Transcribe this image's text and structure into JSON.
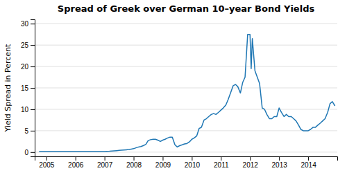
{
  "chart_data": {
    "type": "line",
    "title": "Spread of Greek over German 10–year Bond Yields",
    "ylabel": "Yield Spread in Percent",
    "xlim": [
      2004.6,
      2015.0
    ],
    "xticks": [
      2005,
      2006,
      2007,
      2008,
      2009,
      2010,
      2011,
      2012,
      2013,
      2014
    ],
    "ylim": [
      -1,
      31
    ],
    "yticks": [
      0,
      5,
      10,
      15,
      20,
      25,
      30
    ],
    "grid": "y",
    "x": [
      2004.75,
      2004.83,
      2004.92,
      2005.0,
      2005.08,
      2005.17,
      2005.25,
      2005.33,
      2005.42,
      2005.5,
      2005.58,
      2005.67,
      2005.75,
      2005.83,
      2005.92,
      2006.0,
      2006.08,
      2006.17,
      2006.25,
      2006.33,
      2006.42,
      2006.5,
      2006.58,
      2006.67,
      2006.75,
      2006.83,
      2006.92,
      2007.0,
      2007.08,
      2007.17,
      2007.25,
      2007.33,
      2007.42,
      2007.5,
      2007.58,
      2007.67,
      2007.75,
      2007.83,
      2007.92,
      2008.0,
      2008.08,
      2008.17,
      2008.25,
      2008.33,
      2008.42,
      2008.5,
      2008.58,
      2008.67,
      2008.75,
      2008.83,
      2008.92,
      2009.0,
      2009.08,
      2009.17,
      2009.25,
      2009.33,
      2009.42,
      2009.5,
      2009.58,
      2009.67,
      2009.75,
      2009.83,
      2009.92,
      2010.0,
      2010.08,
      2010.17,
      2010.25,
      2010.33,
      2010.42,
      2010.5,
      2010.58,
      2010.67,
      2010.75,
      2010.83,
      2010.92,
      2011.0,
      2011.08,
      2011.17,
      2011.25,
      2011.33,
      2011.42,
      2011.5,
      2011.58,
      2011.67,
      2011.75,
      2011.83,
      2011.92,
      2012.0,
      2012.04,
      2012.08,
      2012.17,
      2012.25,
      2012.33,
      2012.42,
      2012.5,
      2012.58,
      2012.67,
      2012.75,
      2012.83,
      2012.92,
      2013.0,
      2013.08,
      2013.17,
      2013.25,
      2013.33,
      2013.42,
      2013.5,
      2013.58,
      2013.67,
      2013.75,
      2013.83,
      2013.92,
      2014.0,
      2014.08,
      2014.17,
      2014.25,
      2014.33,
      2014.42,
      2014.5,
      2014.58,
      2014.67,
      2014.75,
      2014.83,
      2014.92
    ],
    "values": [
      0.15,
      0.15,
      0.15,
      0.15,
      0.15,
      0.15,
      0.15,
      0.15,
      0.15,
      0.15,
      0.15,
      0.15,
      0.15,
      0.15,
      0.15,
      0.15,
      0.15,
      0.15,
      0.15,
      0.15,
      0.15,
      0.15,
      0.15,
      0.15,
      0.15,
      0.15,
      0.15,
      0.15,
      0.18,
      0.2,
      0.25,
      0.3,
      0.35,
      0.4,
      0.45,
      0.5,
      0.55,
      0.6,
      0.7,
      0.8,
      1.0,
      1.2,
      1.3,
      1.5,
      1.8,
      2.7,
      2.9,
      3.0,
      3.0,
      2.8,
      2.5,
      2.8,
      3.0,
      3.3,
      3.5,
      3.5,
      1.7,
      1.2,
      1.5,
      1.7,
      1.9,
      2.0,
      2.4,
      3.0,
      3.3,
      3.8,
      5.5,
      5.8,
      7.5,
      7.8,
      8.3,
      8.8,
      9.0,
      8.8,
      9.3,
      9.8,
      10.3,
      11.0,
      12.3,
      13.8,
      15.5,
      15.8,
      15.3,
      13.8,
      16.3,
      17.5,
      27.5,
      27.5,
      19.5,
      26.5,
      19.0,
      17.5,
      16.0,
      10.3,
      10.0,
      8.8,
      7.8,
      7.8,
      8.3,
      8.3,
      10.3,
      9.3,
      8.3,
      8.8,
      8.3,
      8.3,
      7.8,
      7.3,
      6.3,
      5.3,
      5.0,
      5.0,
      5.0,
      5.3,
      5.8,
      5.8,
      6.3,
      6.8,
      7.3,
      7.8,
      9.3,
      11.3,
      11.8,
      10.8
    ]
  }
}
